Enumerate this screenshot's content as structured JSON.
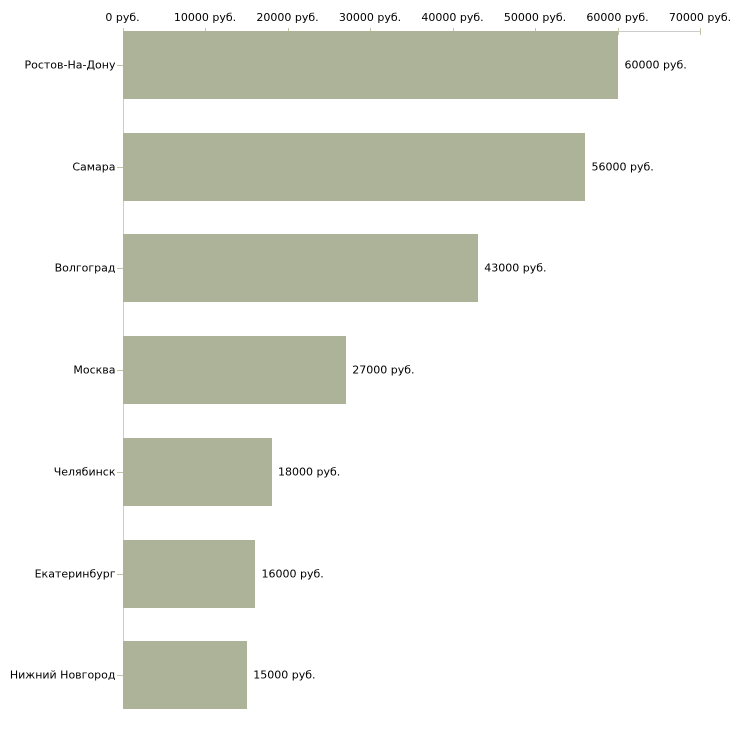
{
  "chart_data": {
    "type": "bar",
    "orientation": "horizontal",
    "title": "",
    "categories": [
      "Ростов-На-Дону",
      "Самара",
      "Волгоград",
      "Москва",
      "Челябинск",
      "Екатеринбург",
      "Нижний Новгород"
    ],
    "values": [
      60000,
      56000,
      43000,
      27000,
      18000,
      16000,
      15000
    ],
    "value_labels": [
      "60000 руб.",
      "56000 руб.",
      "43000 руб.",
      "27000 руб.",
      "18000 руб.",
      "16000 руб.",
      "15000 руб."
    ],
    "unit": "руб.",
    "x_axis": {
      "position": "top",
      "xlim": [
        0,
        70000
      ],
      "ticks": [
        0,
        10000,
        20000,
        30000,
        40000,
        50000,
        60000,
        70000
      ],
      "tick_labels": [
        "0 руб.",
        "10000 руб.",
        "20000 руб.",
        "30000 руб.",
        "40000 руб.",
        "50000 руб.",
        "60000 руб.",
        "70000 руб."
      ]
    },
    "grid": false,
    "legend": false,
    "colors": {
      "bar": "#adb399",
      "axis_line": "#cccccc",
      "tick_mark": "#c6c3a2",
      "text": "#000000",
      "background": "#ffffff"
    }
  }
}
